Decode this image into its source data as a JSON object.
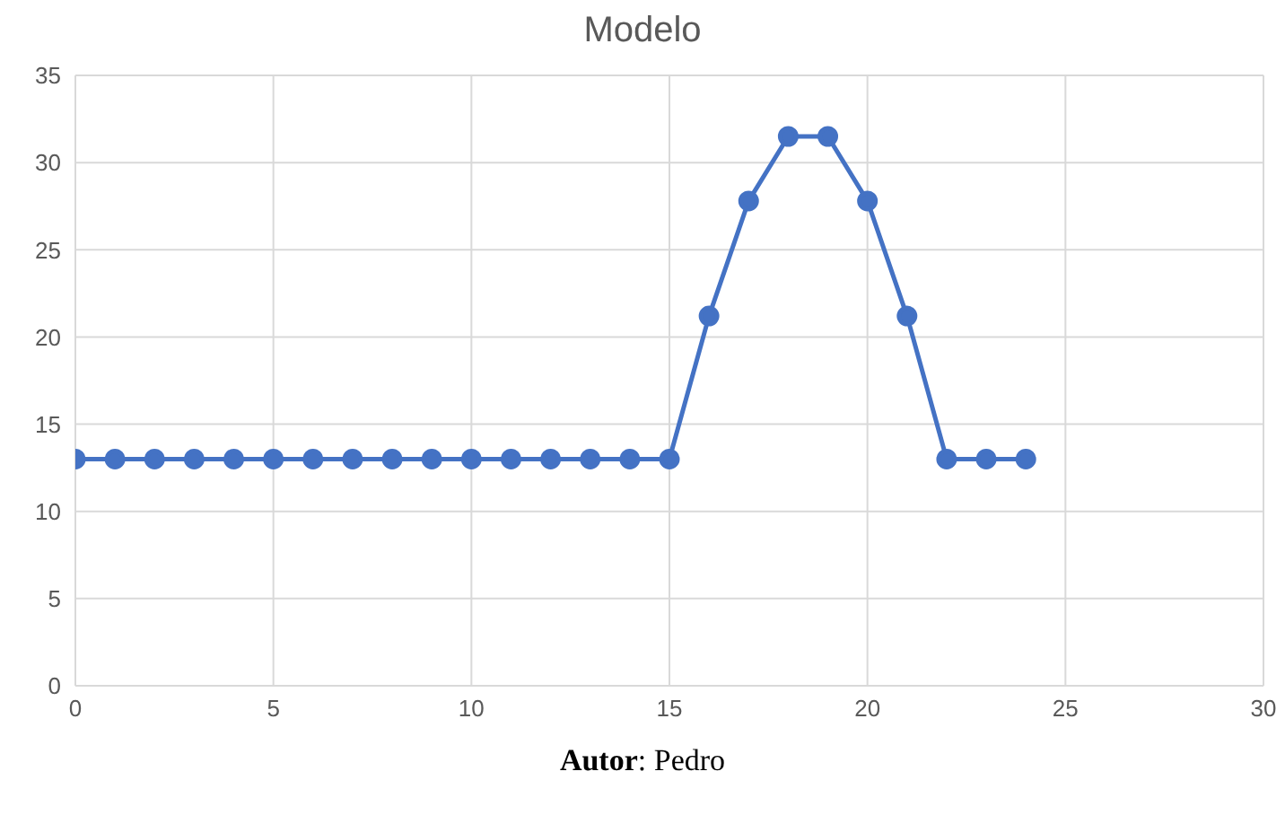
{
  "chart_data": {
    "type": "line",
    "title": "Modelo",
    "x": [
      0,
      1,
      2,
      3,
      4,
      5,
      6,
      7,
      8,
      9,
      10,
      11,
      12,
      13,
      14,
      15,
      16,
      17,
      18,
      19,
      20,
      21,
      22,
      23,
      24
    ],
    "series": [
      {
        "color": "#4472c4",
        "values": [
          13,
          13,
          13,
          13,
          13,
          13,
          13,
          13,
          13,
          13,
          13,
          13,
          13,
          13,
          13,
          13,
          21.2,
          27.8,
          31.5,
          31.5,
          27.8,
          21.2,
          13,
          13,
          13
        ]
      }
    ],
    "xlim": [
      0,
      30
    ],
    "xticks": [
      0,
      5,
      10,
      15,
      20,
      25,
      30
    ],
    "ylim": [
      0,
      35
    ],
    "yticks": [
      0,
      5,
      10,
      15,
      20,
      25,
      30,
      35
    ],
    "grid": true,
    "marker": "circle",
    "legend": false,
    "annotations": [
      "Autor: Pedro"
    ]
  }
}
